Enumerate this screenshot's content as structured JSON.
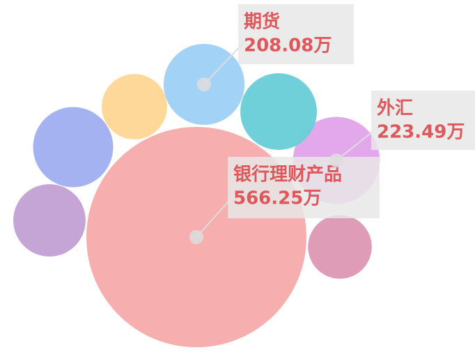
{
  "chart_data": {
    "type": "bubble",
    "categories": [
      "银行理财产品",
      "期货",
      "外汇",
      null,
      null,
      null,
      null,
      null
    ],
    "values": [
      566.25,
      208.08,
      223.49,
      197,
      168,
      206,
      186,
      164
    ],
    "value_labels": [
      "566.25万",
      "208.08万",
      "223.49万",
      null,
      null,
      null,
      null,
      null
    ],
    "colors": [
      "#f5aaaa",
      "#9dd0f4",
      "#e2a2ea",
      "#68ced8",
      "#fdd693",
      "#a0aef1",
      "#c29fd4",
      "#dc97b2"
    ]
  }
}
